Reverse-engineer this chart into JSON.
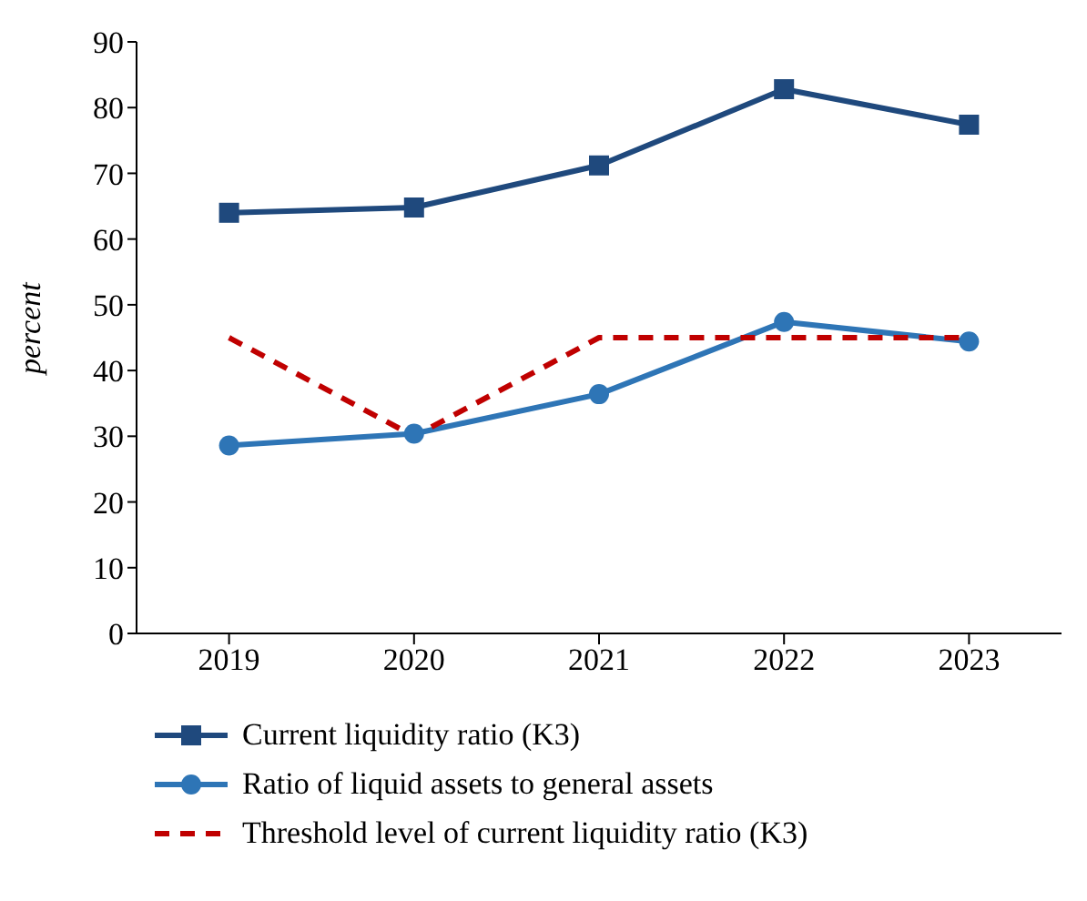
{
  "chart_data": {
    "type": "line",
    "ylabel": "percent",
    "categories": [
      "2019",
      "2020",
      "2021",
      "2022",
      "2023"
    ],
    "series": [
      {
        "name": "Current liquidity ratio (K3)",
        "color": "#1f497d",
        "values": [
          64,
          64.8,
          71.2,
          82.8,
          77.4
        ],
        "marker": "square",
        "line_style": "solid"
      },
      {
        "name": "Ratio of liquid assets to general assets",
        "color": "#2e75b6",
        "values": [
          28.6,
          30.4,
          36.4,
          47.4,
          44.4
        ],
        "marker": "circle",
        "line_style": "solid"
      },
      {
        "name": "Threshold level of current liquidity ratio (K3)",
        "color": "#c00000",
        "values": [
          45,
          30,
          45,
          45,
          45
        ],
        "marker": "none",
        "line_style": "dashed"
      }
    ],
    "ylim": [
      0,
      90
    ],
    "yticks": [
      0,
      10,
      20,
      30,
      40,
      50,
      60,
      70,
      80,
      90
    ],
    "grid": false,
    "legend": "bottom"
  }
}
